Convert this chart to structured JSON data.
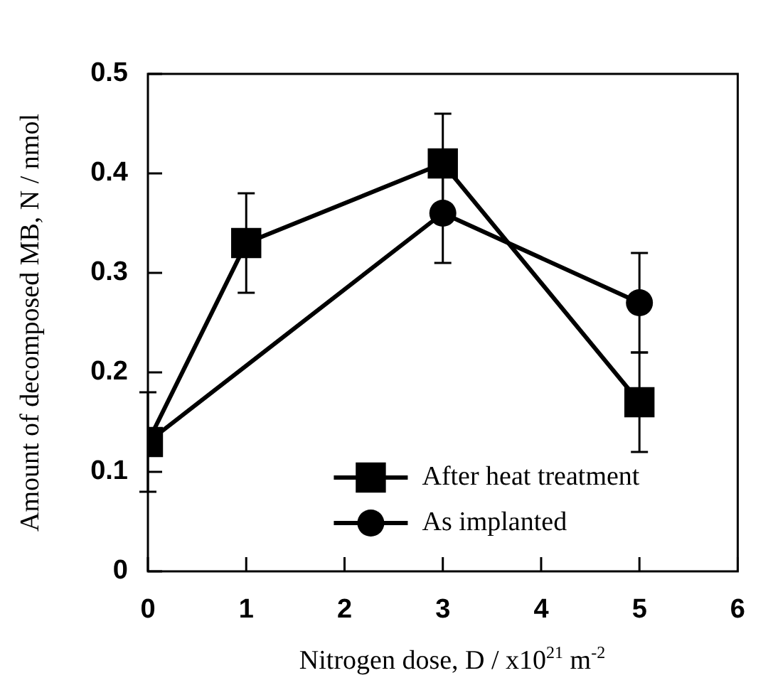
{
  "chart_data": {
    "type": "line",
    "xlabel": "Nitrogen dose, D / x10$^{21}$ m$^{-2}$",
    "ylabel": "Amount of decomposed MB, N / nmol",
    "xlim": [
      0,
      6
    ],
    "xticks": [
      0,
      1,
      2,
      3,
      4,
      5,
      6
    ],
    "ylim": [
      0,
      0.5
    ],
    "yticks": [
      0,
      0.1,
      0.2,
      0.3,
      0.4,
      0.5
    ],
    "legend": "bottom right",
    "line_style": "solid",
    "series": [
      {
        "name": "After heat treatment",
        "color": "#000000",
        "marker": "square",
        "x": [
          0,
          1,
          3,
          5
        ],
        "values": [
          0.13,
          0.33,
          0.41,
          0.17
        ],
        "errors": [
          0.05,
          0.05,
          0.05,
          0.05
        ]
      },
      {
        "name": "As implanted",
        "color": "#000000",
        "marker": "circle",
        "x": [
          0,
          3,
          5
        ],
        "values": [
          0.13,
          0.36,
          0.27
        ],
        "errors": [
          null,
          0.05,
          0.05
        ]
      }
    ]
  }
}
